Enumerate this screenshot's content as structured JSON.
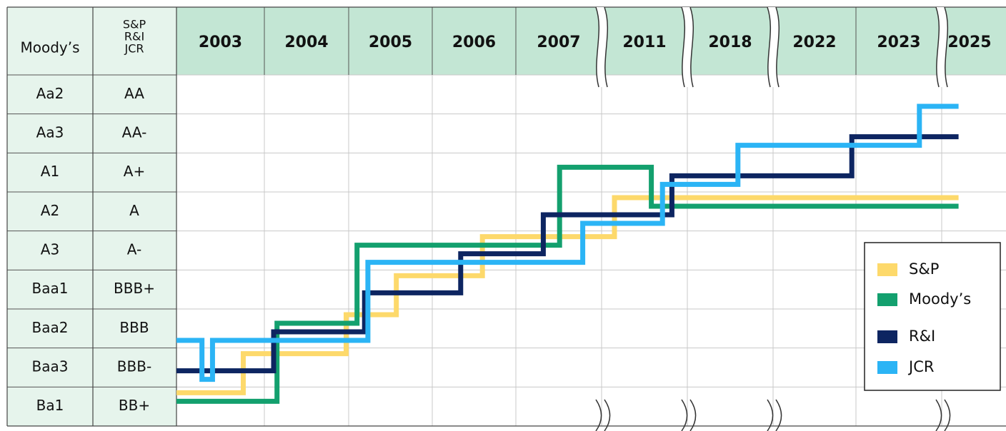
{
  "chart_data": {
    "type": "step",
    "header": {
      "moodys": "Moody’s",
      "others": [
        "S&P",
        "R&I",
        "JCR"
      ]
    },
    "years": [
      2003,
      2004,
      2005,
      2006,
      2007,
      2011,
      2018,
      2022,
      2023,
      2025
    ],
    "ratings": {
      "moodys": [
        "Aa2",
        "Aa3",
        "A1",
        "A2",
        "A3",
        "Baa1",
        "Baa2",
        "Baa3",
        "Ba1"
      ],
      "sp": [
        "AA",
        "AA-",
        "A+",
        "A",
        "A-",
        "BBB+",
        "BBB",
        "BBB-",
        "BB+"
      ]
    },
    "series": [
      {
        "name": "S&P",
        "color": "#fdd96b",
        "x": [
          2003,
          2003.76,
          2004.97,
          2005.57,
          2006.6,
          2011.15,
          2025.2
        ],
        "values": [
          "BB+",
          "BBB-",
          "BBB",
          "BBB+",
          "A-",
          "A",
          "A"
        ]
      },
      {
        "name": "Moody’s",
        "color": "#13a06e",
        "x": [
          2003,
          2004.15,
          2005.1,
          2007.51,
          2011.58,
          2025.2
        ],
        "values": [
          "Ba1",
          "Baa2",
          "A3",
          "A1",
          "A2",
          "A2"
        ]
      },
      {
        "name": "R&I",
        "color": "#0d2561",
        "x": [
          2003,
          2004.11,
          2005.19,
          2006.34,
          2007.32,
          2011.82,
          2022.95,
          2025.2
        ],
        "values": [
          "BBB-",
          "BBB",
          "BBB+",
          "A-",
          "A",
          "A+",
          "AA-",
          "AA-"
        ]
      },
      {
        "name": "JCR",
        "color": "#2bb4f5",
        "x": [
          2003,
          2003.29,
          2003.41,
          2005.23,
          2007.78,
          2011.71,
          2018.59,
          2023.74,
          2025.2
        ],
        "values": [
          "BBB",
          "BBB-",
          "BBB",
          "A-",
          "A",
          "A+",
          "AA-",
          "AA",
          "AA"
        ]
      }
    ],
    "legend": "bottom-right"
  }
}
